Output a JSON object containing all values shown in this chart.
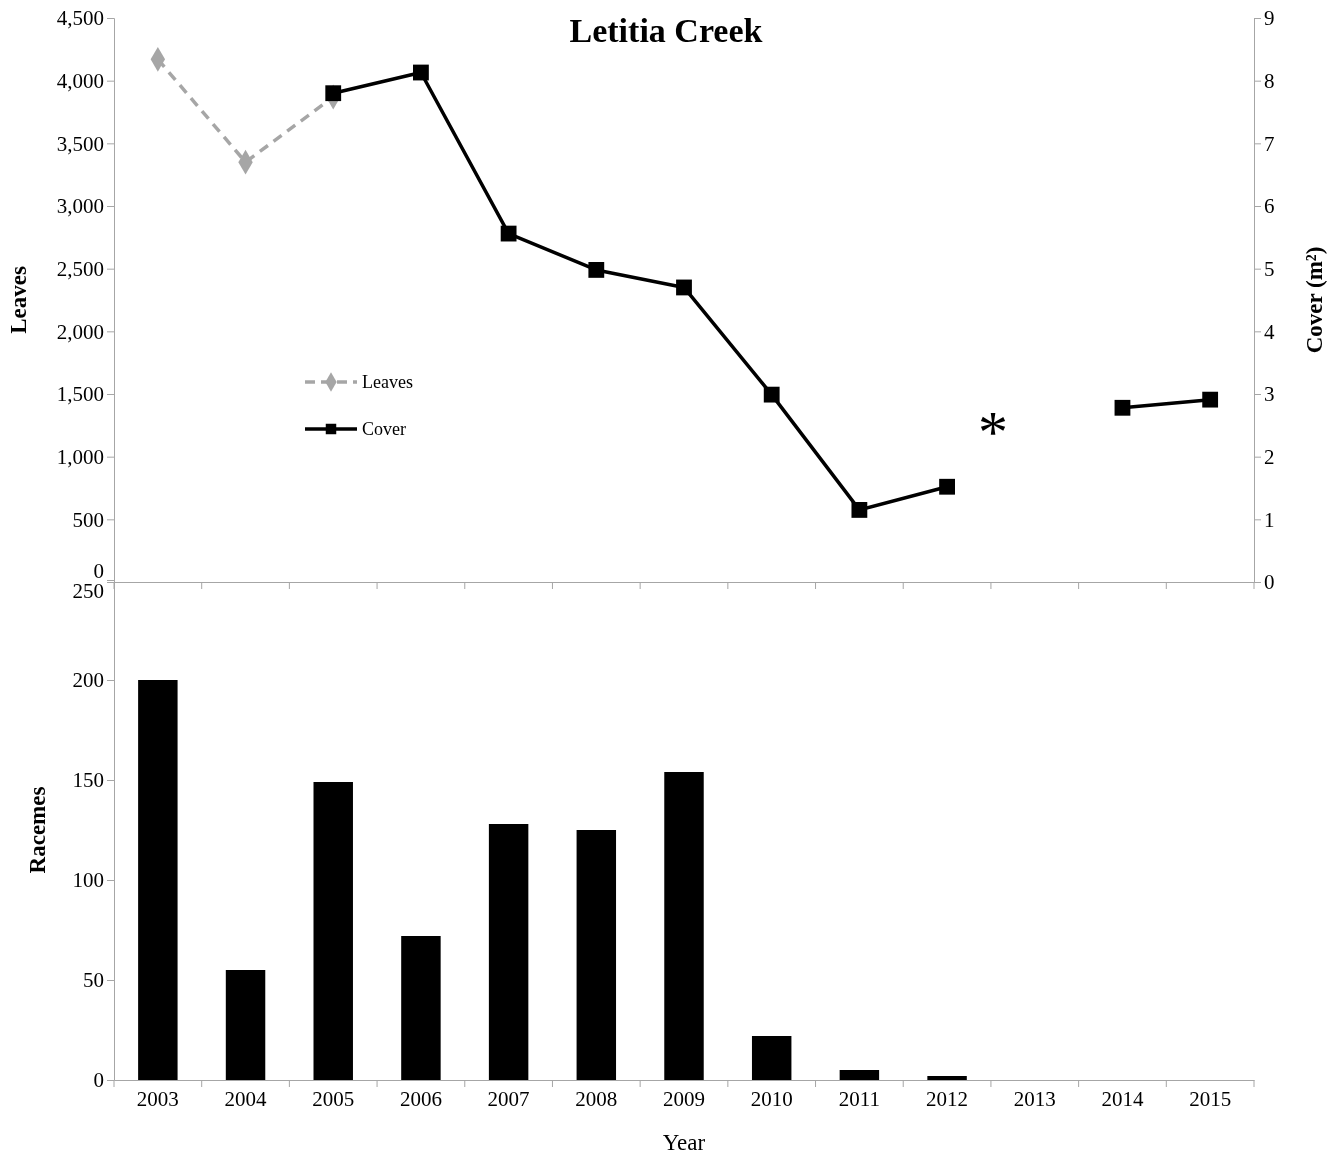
{
  "chart_data": [
    {
      "type": "line",
      "title": "Letitia Creek",
      "ylabel": "Leaves",
      "y2label": "Cover (m²)",
      "categories": [
        "2003",
        "2004",
        "2005",
        "2006",
        "2007",
        "2008",
        "2009",
        "2010",
        "2011",
        "2012",
        "2013",
        "2014",
        "2015"
      ],
      "series": [
        {
          "name": "Leaves",
          "color": "#a6a6a6",
          "marker": "diamond",
          "line_style": "dashed",
          "values": [
            4170,
            3350,
            3870,
            null,
            null,
            null,
            null,
            null,
            null,
            null,
            null,
            null,
            null
          ]
        },
        {
          "name": "Cover",
          "color": "#000000",
          "marker": "square",
          "line_style": "solid",
          "axis": "y2",
          "values": [
            null,
            null,
            7.8,
            8.13,
            5.56,
            4.98,
            4.7,
            2.99,
            1.15,
            1.52,
            null,
            2.78,
            2.91
          ]
        }
      ],
      "ylim": [
        0,
        4500
      ],
      "yticks": [
        0,
        500,
        {
          "value": 1000,
          "label": "1,000"
        },
        {
          "value": 1500,
          "label": "1,500"
        },
        {
          "value": 2000,
          "label": "2,000"
        },
        {
          "value": 2500,
          "label": "2,500"
        },
        {
          "value": 3000,
          "label": "3,000"
        },
        {
          "value": 3500,
          "label": "3,500"
        },
        {
          "value": 4000,
          "label": "4,000"
        },
        {
          "value": 4500,
          "label": "4,500"
        }
      ],
      "y2lim": [
        0,
        9
      ],
      "y2ticks": [
        0,
        1,
        2,
        3,
        4,
        5,
        6,
        7,
        8,
        9
      ],
      "annotations": [
        "*"
      ],
      "legend": "left",
      "tick_labels": "y",
      "grid": false
    },
    {
      "type": "bar",
      "xlabel": "Year",
      "ylabel": "Racemes",
      "categories": [
        "2003",
        "2004",
        "2005",
        "2006",
        "2007",
        "2008",
        "2009",
        "2010",
        "2011",
        "2012",
        "2013",
        "2014",
        "2015"
      ],
      "values": [
        200,
        55,
        149,
        72,
        128,
        125,
        154,
        22,
        5,
        2,
        0,
        0,
        0
      ],
      "color": "#000000",
      "ylim": [
        0,
        250
      ],
      "yticks": [
        0,
        50,
        100,
        150,
        200,
        250
      ],
      "grid": false
    }
  ]
}
